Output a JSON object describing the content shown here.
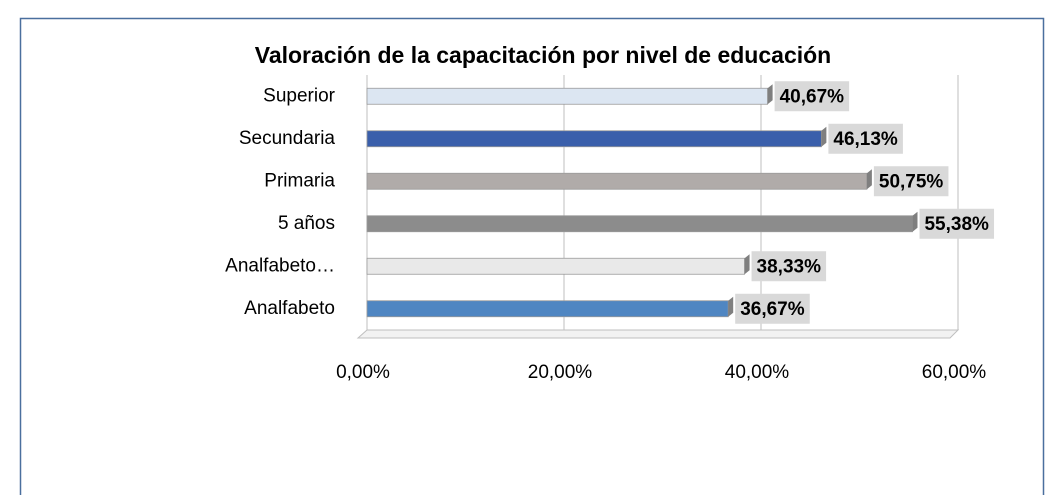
{
  "chart_data": {
    "type": "bar",
    "orientation": "horizontal",
    "title": "Valoración de la capacitación por nivel de educación",
    "categories": [
      "Superior",
      "Secundaria",
      "Primaria",
      "5 años",
      "Analfabeto…",
      "Analfabeto"
    ],
    "values": [
      40.67,
      46.13,
      50.75,
      55.38,
      38.33,
      36.67
    ],
    "value_labels": [
      "40,67%",
      "46,13%",
      "50,75%",
      "55,38%",
      "38,33%",
      "36,67%"
    ],
    "colors": [
      "#dce6f2",
      "#3a5fab",
      "#b0aba9",
      "#8c8c8c",
      "#e9e9e9",
      "#4f86c2"
    ],
    "xlim": [
      0,
      60
    ],
    "xticks": [
      {
        "value": 0,
        "label": "0,00%"
      },
      {
        "value": 20,
        "label": "20,00%"
      },
      {
        "value": 40,
        "label": "40,00%"
      },
      {
        "value": 60,
        "label": "60,00%"
      }
    ],
    "grid": true
  }
}
